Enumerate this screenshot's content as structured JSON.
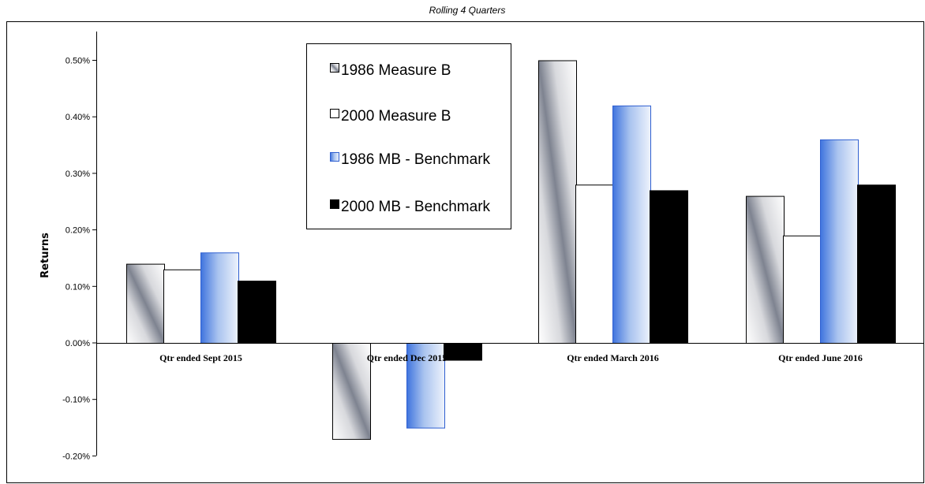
{
  "chart_data": {
    "type": "bar",
    "title": "Rolling 4 Quarters",
    "xlabel": "",
    "ylabel": "Returns",
    "categories": [
      "Qtr ended Sept 2015",
      "Qtr ended Dec 2015",
      "Qtr ended March 2016",
      "Qtr ended June 2016"
    ],
    "series": [
      {
        "name": "1986 Measure B",
        "values": [
          0.14,
          -0.17,
          0.5,
          0.26
        ],
        "color": "#8a8f99"
      },
      {
        "name": "2000 Measure B",
        "values": [
          0.13,
          0.0,
          0.28,
          0.19
        ],
        "color": "#ffffff"
      },
      {
        "name": "1986 MB - Benchmark",
        "values": [
          0.16,
          -0.15,
          0.42,
          0.36
        ],
        "color": "#4a7fe0"
      },
      {
        "name": "2000 MB - Benchmark",
        "values": [
          0.11,
          -0.03,
          0.27,
          0.28
        ],
        "color": "#000000"
      }
    ],
    "ylim": [
      -0.2,
      0.55
    ],
    "yticks": [
      "0.50%",
      "0.40%",
      "0.30%",
      "0.20%",
      "0.10%",
      "0.00%",
      "-0.10%",
      "-0.20%"
    ],
    "ytick_values": [
      0.5,
      0.4,
      0.3,
      0.2,
      0.1,
      0.0,
      -0.1,
      -0.2
    ],
    "grid": false,
    "legend_position": "top-center"
  }
}
